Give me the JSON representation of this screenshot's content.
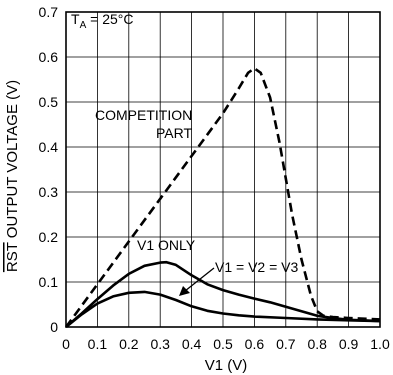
{
  "chart_data": {
    "type": "line",
    "xlabel": "V1 (V)",
    "ylabel_overbar": "RST",
    "ylabel_rest": " OUTPUT VOLTAGE (V)",
    "xlim": [
      0,
      1.0
    ],
    "ylim": [
      0,
      0.7
    ],
    "x_ticks": [
      "0",
      "0.1",
      "0.2",
      "0.3",
      "0.4",
      "0.5",
      "0.6",
      "0.7",
      "0.8",
      "0.9",
      "1.0"
    ],
    "y_ticks": [
      "0",
      "0.1",
      "0.2",
      "0.3",
      "0.4",
      "0.5",
      "0.6",
      "0.7"
    ],
    "grid": true,
    "condition": {
      "main": "T",
      "sub": "A",
      "rest": " = 25°C"
    },
    "annotations": {
      "competition_line1": "COMPETITION",
      "competition_line2": "PART",
      "v1_only": "V1 ONLY",
      "v1v2v3": "V1 = V2 = V3"
    },
    "series": [
      {
        "name": "COMPETITION PART",
        "style": "dashed",
        "x": [
          0,
          0.1,
          0.2,
          0.3,
          0.4,
          0.5,
          0.55,
          0.58,
          0.6,
          0.62,
          0.65,
          0.68,
          0.7,
          0.72,
          0.75,
          0.78,
          0.8,
          0.82,
          0.85,
          0.9,
          1.0
        ],
        "y": [
          0,
          0.095,
          0.19,
          0.285,
          0.38,
          0.475,
          0.53,
          0.565,
          0.575,
          0.565,
          0.51,
          0.41,
          0.33,
          0.25,
          0.15,
          0.07,
          0.035,
          0.025,
          0.022,
          0.02,
          0.017
        ]
      },
      {
        "name": "V1 ONLY",
        "style": "solid",
        "x": [
          0,
          0.05,
          0.1,
          0.15,
          0.2,
          0.25,
          0.3,
          0.32,
          0.35,
          0.4,
          0.45,
          0.5,
          0.55,
          0.6,
          0.65,
          0.7,
          0.75,
          0.8,
          0.85,
          0.9,
          1.0
        ],
        "y": [
          0,
          0.03,
          0.062,
          0.092,
          0.118,
          0.136,
          0.143,
          0.144,
          0.138,
          0.115,
          0.095,
          0.082,
          0.072,
          0.063,
          0.055,
          0.045,
          0.035,
          0.025,
          0.02,
          0.016,
          0.013
        ]
      },
      {
        "name": "V1 = V2 = V3",
        "style": "solid",
        "x": [
          0,
          0.05,
          0.1,
          0.15,
          0.2,
          0.25,
          0.3,
          0.35,
          0.4,
          0.45,
          0.5,
          0.55,
          0.6,
          0.7,
          0.8,
          0.9,
          1.0
        ],
        "y": [
          0,
          0.028,
          0.052,
          0.068,
          0.076,
          0.078,
          0.072,
          0.06,
          0.046,
          0.036,
          0.03,
          0.026,
          0.023,
          0.02,
          0.017,
          0.015,
          0.013
        ]
      }
    ]
  }
}
